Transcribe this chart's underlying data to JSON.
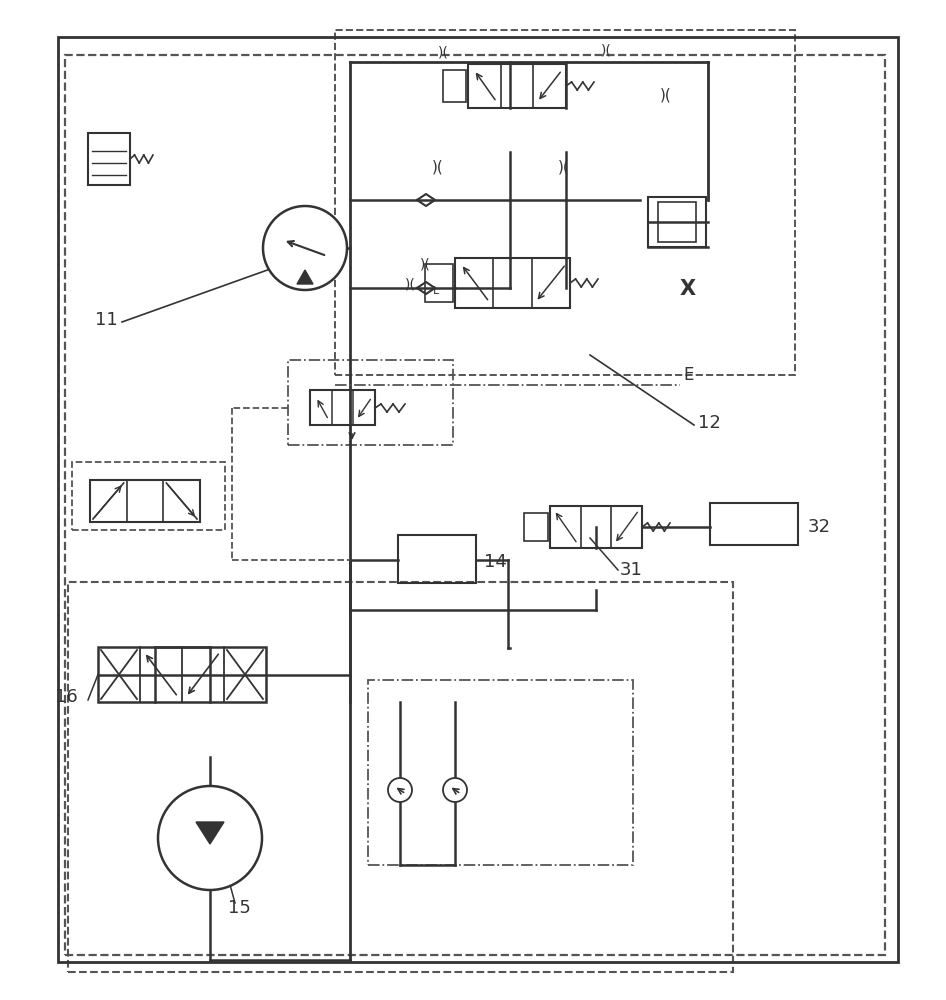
{
  "bg_color": "#ffffff",
  "line_color": "#333333",
  "dashed_color": "#555555",
  "label_11": "11",
  "label_12": "12",
  "label_14": "14",
  "label_15": "15",
  "label_16": "16",
  "label_31": "31",
  "label_32": "32",
  "label_X": "X",
  "label_E": "E"
}
